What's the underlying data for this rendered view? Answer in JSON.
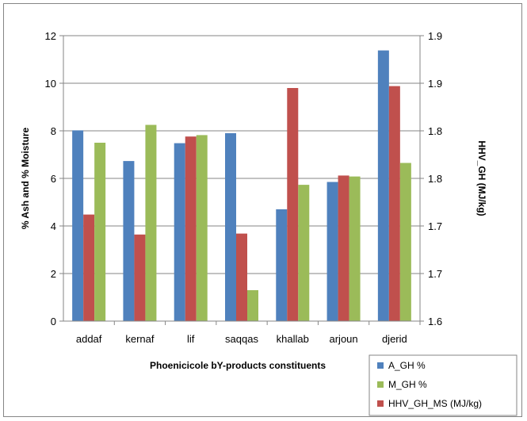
{
  "chart_data": {
    "type": "bar",
    "categories": [
      "addaf",
      "kernaf",
      "lif",
      "saqqas",
      "khallab",
      "arjoun",
      "djerid"
    ],
    "xlabel": "Phoenicicole bY-products constituents",
    "ylabel": "% Ash and % Moisture",
    "y2label": "HHV_GH (MJ/kg)",
    "ylim": [
      0,
      12
    ],
    "yticks": [
      "0",
      "2",
      "4",
      "6",
      "8",
      "10",
      "12"
    ],
    "y2lim": [
      1.6,
      1.9
    ],
    "y2ticks": [
      "1.6",
      "1.7",
      "1.7",
      "1.8",
      "1.8",
      "1.9",
      "1.9"
    ],
    "grid": true,
    "legend_position": "bottom-right",
    "series": [
      {
        "name": "A_GH %",
        "axis": "left",
        "color": "#4F81BD",
        "values": [
          8.02,
          6.73,
          7.48,
          7.9,
          4.7,
          5.85,
          11.38
        ]
      },
      {
        "name": "HHV_GH_MS (MJ/kg)",
        "axis": "right",
        "color": "#C0504D",
        "values": [
          1.712,
          1.691,
          1.794,
          1.692,
          1.845,
          1.753,
          1.847
        ]
      },
      {
        "name": "M_GH %",
        "axis": "left",
        "color": "#9BBB59",
        "values": [
          7.5,
          8.25,
          7.82,
          1.3,
          5.73,
          6.08,
          6.65
        ]
      }
    ],
    "legend_order": [
      0,
      2,
      1
    ]
  }
}
